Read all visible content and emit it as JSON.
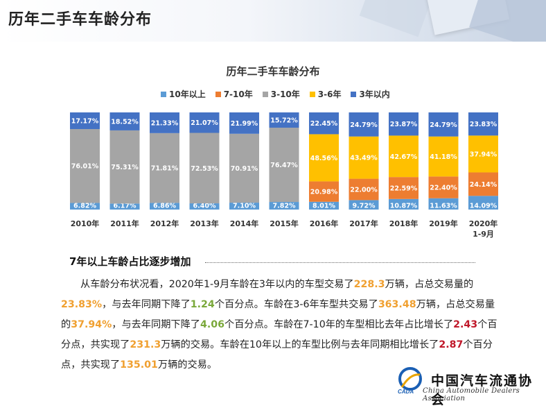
{
  "header": {
    "title": "历年二手车车龄分布"
  },
  "chart_data": {
    "type": "bar",
    "stacked": true,
    "title": "历年二手车车龄分布",
    "categories": [
      "2010年",
      "2011年",
      "2012年",
      "2013年",
      "2014年",
      "2015年",
      "2016年",
      "2017年",
      "2018年",
      "2019年",
      "2020年 1-9月"
    ],
    "series": [
      {
        "name": "10年以上",
        "color": "#5b9bd5",
        "values": [
          6.82,
          6.17,
          6.86,
          6.4,
          7.1,
          7.82,
          8.01,
          9.72,
          10.87,
          11.63,
          14.09
        ],
        "labels": [
          "6.82%",
          "6.17%",
          "6.86%",
          "6.40%",
          "7.10%",
          "7.82%",
          "8.01%",
          "9.72%",
          "10.87%",
          "11.63%",
          "14.09%"
        ]
      },
      {
        "name": "7-10年",
        "color": "#ed7d31",
        "values": [
          null,
          null,
          null,
          null,
          null,
          null,
          20.98,
          22.0,
          22.59,
          22.4,
          24.14
        ],
        "labels": [
          "",
          "",
          "",
          "",
          "",
          "",
          "20.98%",
          "22.00%",
          "22.59%",
          "22.40%",
          "24.14%"
        ]
      },
      {
        "name": "3-10年",
        "color": "#a5a5a5",
        "values": [
          76.01,
          75.31,
          71.81,
          72.53,
          70.91,
          76.47,
          null,
          null,
          null,
          null,
          null
        ],
        "labels": [
          "76.01%",
          "75.31%",
          "71.81%",
          "72.53%",
          "70.91%",
          "76.47%",
          "",
          "",
          "",
          "",
          ""
        ]
      },
      {
        "name": "3-6年",
        "color": "#ffc000",
        "values": [
          null,
          null,
          null,
          null,
          null,
          null,
          48.56,
          43.49,
          42.67,
          41.18,
          37.94
        ],
        "labels": [
          "",
          "",
          "",
          "",
          "",
          "",
          "48.56%",
          "43.49%",
          "42.67%",
          "41.18%",
          "37.94%"
        ]
      },
      {
        "name": "3年以内",
        "color": "#4472c4",
        "values": [
          17.17,
          18.52,
          21.33,
          21.07,
          21.99,
          15.72,
          22.45,
          24.79,
          23.87,
          24.79,
          23.83
        ],
        "labels": [
          "17.17%",
          "18.52%",
          "21.33%",
          "21.07%",
          "21.99%",
          "15.72%",
          "22.45%",
          "24.79%",
          "23.87%",
          "24.79%",
          "23.83%"
        ]
      }
    ],
    "legend": {
      "position": "top-center"
    },
    "ylim": [
      0,
      100
    ]
  },
  "section": {
    "heading": "7年以上车龄占比逐步增加",
    "paragraph": [
      {
        "t": "从车龄分布状况看，2020年1-9月车龄在3年以内的车型交易了",
        "c": ""
      },
      {
        "t": "228.3",
        "c": "o"
      },
      {
        "t": "万辆，占总交易量的",
        "c": ""
      },
      {
        "t": "23.83%",
        "c": "o"
      },
      {
        "t": "，与去年同期下降了",
        "c": ""
      },
      {
        "t": "1.24",
        "c": "g"
      },
      {
        "t": "个百分点。车龄在3-6年车型共交易了",
        "c": ""
      },
      {
        "t": "363.48",
        "c": "o"
      },
      {
        "t": "万辆，占总交易量的",
        "c": ""
      },
      {
        "t": "37.94%",
        "c": "o"
      },
      {
        "t": "，与去年同期下降了",
        "c": ""
      },
      {
        "t": "4.06",
        "c": "g"
      },
      {
        "t": "个百分点。车龄在7-10年的车型相比去年占比增长了",
        "c": ""
      },
      {
        "t": "2.43",
        "c": "r"
      },
      {
        "t": "个百分点，共实现了",
        "c": ""
      },
      {
        "t": "231.3",
        "c": "o"
      },
      {
        "t": "万辆的交易。车龄在10年以上的车型比例与去年同期相比增长了",
        "c": ""
      },
      {
        "t": "2.87",
        "c": "r"
      },
      {
        "t": "个百分点，共实现了",
        "c": ""
      },
      {
        "t": "135.01",
        "c": "o"
      },
      {
        "t": "万辆的交易。",
        "c": ""
      }
    ]
  },
  "logo": {
    "cn": "中国汽车流通协会",
    "en": "China Automobile Dealers Association",
    "mark": "CADA"
  }
}
